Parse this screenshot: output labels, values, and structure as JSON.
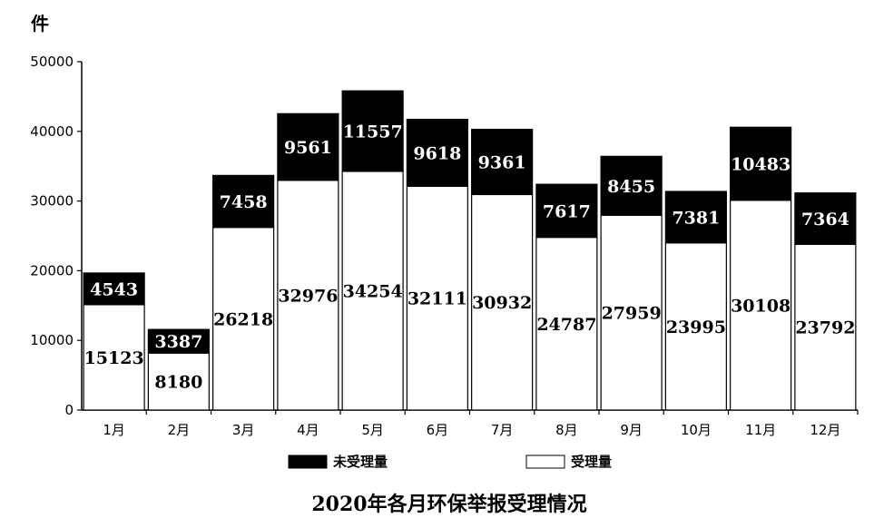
{
  "chart_data": {
    "type": "bar",
    "stacked": true,
    "title": "2020年各月环保举报受理情况",
    "unit_label": "件",
    "categories": [
      "1月",
      "2月",
      "3月",
      "4月",
      "5月",
      "6月",
      "7月",
      "8月",
      "9月",
      "10月",
      "11月",
      "12月"
    ],
    "series": [
      {
        "name": "受理量",
        "color": "#ffffff",
        "values": [
          15123,
          8180,
          26218,
          32976,
          34254,
          32111,
          30932,
          24787,
          27959,
          23995,
          30108,
          23792
        ]
      },
      {
        "name": "未受理量",
        "color": "#000000",
        "values": [
          4543,
          3387,
          7458,
          9561,
          11557,
          9618,
          9361,
          7617,
          8455,
          7381,
          10483,
          7364
        ]
      }
    ],
    "ylim": [
      0,
      50000
    ],
    "yticks": [
      0,
      10000,
      20000,
      30000,
      40000,
      50000
    ],
    "grid": false,
    "legend_position": "bottom"
  }
}
